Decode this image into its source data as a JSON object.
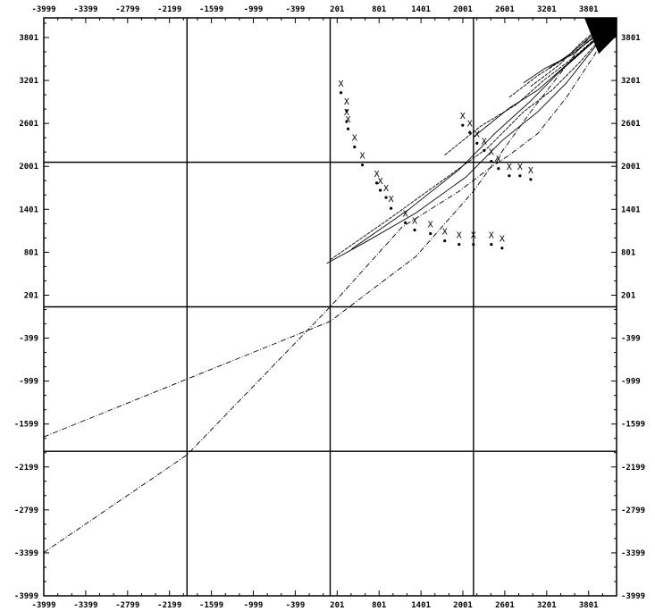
{
  "chart_data": {
    "type": "line",
    "title": "",
    "xlabel": "",
    "ylabel": "",
    "xlim": [
      -3999,
      3999
    ],
    "ylim": [
      -3999,
      3999
    ],
    "x_ticks": [
      "-3999",
      "-3399",
      "-2799",
      "-2199",
      "-1599",
      "-999",
      "-399",
      "201",
      "801",
      "1401",
      "2001",
      "2601",
      "3201",
      "3801"
    ],
    "y_ticks": [
      "3801",
      "3201",
      "2601",
      "2001",
      "1401",
      "801",
      "201",
      "-399",
      "-999",
      "-1599",
      "-2199",
      "-2799",
      "-3399",
      "-3999"
    ],
    "reference_lines": {
      "x": [
        -1999,
        0,
        2001
      ],
      "y": [
        2001,
        0,
        -1999
      ]
    },
    "series": [
      {
        "kind": "contour",
        "points": [
          [
            -3999,
            -1800
          ],
          [
            -2000,
            -1000
          ],
          [
            0,
            -200
          ],
          [
            1200,
            700
          ],
          [
            2000,
            1600
          ],
          [
            2800,
            2700
          ],
          [
            3500,
            3600
          ],
          [
            3850,
            3950
          ]
        ]
      },
      {
        "kind": "contour",
        "points": [
          [
            -3999,
            -3399
          ],
          [
            -2000,
            -2050
          ],
          [
            0,
            0
          ],
          [
            1000,
            1100
          ],
          [
            1800,
            1600
          ],
          [
            2200,
            1900
          ],
          [
            2500,
            2100
          ],
          [
            2900,
            2400
          ],
          [
            3300,
            2900
          ],
          [
            3700,
            3500
          ],
          [
            3900,
            3900
          ]
        ]
      },
      {
        "kind": "contour",
        "points": [
          [
            -50,
            600
          ],
          [
            500,
            900
          ],
          [
            1200,
            1300
          ],
          [
            1900,
            1800
          ],
          [
            2400,
            2300
          ],
          [
            2900,
            2700
          ],
          [
            3300,
            3100
          ],
          [
            3700,
            3600
          ],
          [
            3950,
            3950
          ]
        ]
      },
      {
        "kind": "contour",
        "points": [
          [
            0,
            650
          ],
          [
            800,
            1200
          ],
          [
            1500,
            1700
          ],
          [
            2200,
            2200
          ],
          [
            2700,
            2700
          ],
          [
            3100,
            3000
          ],
          [
            3500,
            3400
          ],
          [
            3850,
            3800
          ]
        ]
      },
      {
        "kind": "contour",
        "points": [
          [
            300,
            800
          ],
          [
            1100,
            1350
          ],
          [
            1800,
            1900
          ],
          [
            2300,
            2400
          ],
          [
            2800,
            2850
          ],
          [
            3200,
            3250
          ],
          [
            3600,
            3600
          ],
          [
            3900,
            3850
          ]
        ]
      },
      {
        "kind": "contour",
        "points": [
          [
            1600,
            2100
          ],
          [
            2100,
            2500
          ],
          [
            2600,
            2800
          ],
          [
            3000,
            3150
          ],
          [
            3400,
            3450
          ],
          [
            3800,
            3800
          ]
        ]
      },
      {
        "kind": "contour",
        "points": [
          [
            2000,
            2350
          ],
          [
            2500,
            2750
          ],
          [
            2900,
            3000
          ],
          [
            3300,
            3350
          ],
          [
            3700,
            3700
          ]
        ]
      },
      {
        "kind": "contour",
        "points": [
          [
            2500,
            2900
          ],
          [
            2900,
            3200
          ],
          [
            3300,
            3450
          ],
          [
            3650,
            3700
          ],
          [
            3900,
            3900
          ]
        ]
      },
      {
        "kind": "contour",
        "points": [
          [
            2700,
            3100
          ],
          [
            3000,
            3300
          ],
          [
            3400,
            3500
          ],
          [
            3750,
            3800
          ]
        ]
      },
      {
        "kind": "contour",
        "points": [
          [
            2800,
            3050
          ],
          [
            3200,
            3350
          ],
          [
            3500,
            3650
          ],
          [
            3800,
            3900
          ]
        ]
      },
      {
        "kind": "contour",
        "points": [
          [
            3050,
            3300
          ],
          [
            3350,
            3500
          ],
          [
            3650,
            3750
          ],
          [
            3900,
            3950
          ]
        ]
      }
    ],
    "markers": {
      "symbol": "X",
      "points": [
        [
          150,
          3050
        ],
        [
          230,
          2800
        ],
        [
          230,
          2650
        ],
        [
          250,
          2550
        ],
        [
          340,
          2300
        ],
        [
          450,
          2050
        ],
        [
          650,
          1800
        ],
        [
          700,
          1700
        ],
        [
          780,
          1600
        ],
        [
          850,
          1450
        ],
        [
          1050,
          1250
        ],
        [
          1180,
          1150
        ],
        [
          1400,
          1100
        ],
        [
          1600,
          1000
        ],
        [
          1800,
          950
        ],
        [
          2000,
          950
        ],
        [
          2250,
          950
        ],
        [
          2400,
          900
        ],
        [
          1850,
          2600
        ],
        [
          1950,
          2500
        ],
        [
          2050,
          2350
        ],
        [
          2150,
          2250
        ],
        [
          2250,
          2100
        ],
        [
          2350,
          2000
        ],
        [
          2500,
          1900
        ],
        [
          2650,
          1900
        ],
        [
          2800,
          1850
        ]
      ]
    }
  }
}
